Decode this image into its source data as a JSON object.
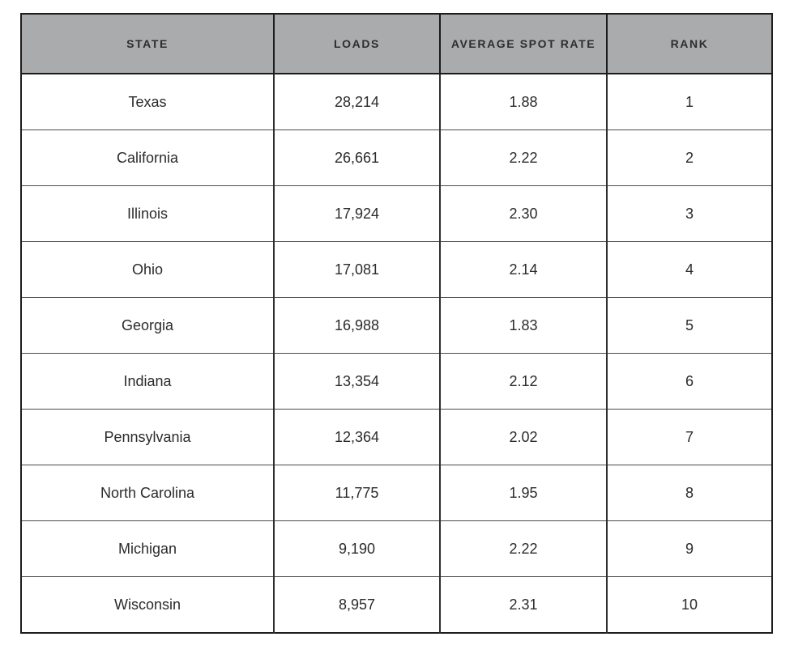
{
  "colors": {
    "header_bg": "#aaabad",
    "header_text": "#2d2d2d",
    "cell_text": "#2b2b2b",
    "border_dark": "#1c1c1c"
  },
  "table": {
    "columns": [
      {
        "id": "state",
        "label": "STATE"
      },
      {
        "id": "loads",
        "label": "LOADS"
      },
      {
        "id": "rate",
        "label": "AVERAGE SPOT RATE"
      },
      {
        "id": "rank",
        "label": "RANK"
      }
    ],
    "rows": [
      {
        "state": "Texas",
        "loads": "28,214",
        "rate": "1.88",
        "rank": "1"
      },
      {
        "state": "California",
        "loads": "26,661",
        "rate": "2.22",
        "rank": "2"
      },
      {
        "state": "Illinois",
        "loads": "17,924",
        "rate": "2.30",
        "rank": "3"
      },
      {
        "state": "Ohio",
        "loads": "17,081",
        "rate": "2.14",
        "rank": "4"
      },
      {
        "state": "Georgia",
        "loads": "16,988",
        "rate": "1.83",
        "rank": "5"
      },
      {
        "state": "Indiana",
        "loads": "13,354",
        "rate": "2.12",
        "rank": "6"
      },
      {
        "state": "Pennsylvania",
        "loads": "12,364",
        "rate": "2.02",
        "rank": "7"
      },
      {
        "state": "North Carolina",
        "loads": "11,775",
        "rate": "1.95",
        "rank": "8"
      },
      {
        "state": "Michigan",
        "loads": "9,190",
        "rate": "2.22",
        "rank": "9"
      },
      {
        "state": "Wisconsin",
        "loads": "8,957",
        "rate": "2.31",
        "rank": "10"
      }
    ]
  },
  "chart_data": {
    "type": "table",
    "title": "",
    "columns": [
      "STATE",
      "LOADS",
      "AVERAGE SPOT RATE",
      "RANK"
    ],
    "rows": [
      [
        "Texas",
        28214,
        1.88,
        1
      ],
      [
        "California",
        26661,
        2.22,
        2
      ],
      [
        "Illinois",
        17924,
        2.3,
        3
      ],
      [
        "Ohio",
        17081,
        2.14,
        4
      ],
      [
        "Georgia",
        16988,
        1.83,
        5
      ],
      [
        "Indiana",
        13354,
        2.12,
        6
      ],
      [
        "Pennsylvania",
        12364,
        2.02,
        7
      ],
      [
        "North Carolina",
        11775,
        1.95,
        8
      ],
      [
        "Michigan",
        9190,
        2.22,
        9
      ],
      [
        "Wisconsin",
        8957,
        2.31,
        10
      ]
    ]
  }
}
